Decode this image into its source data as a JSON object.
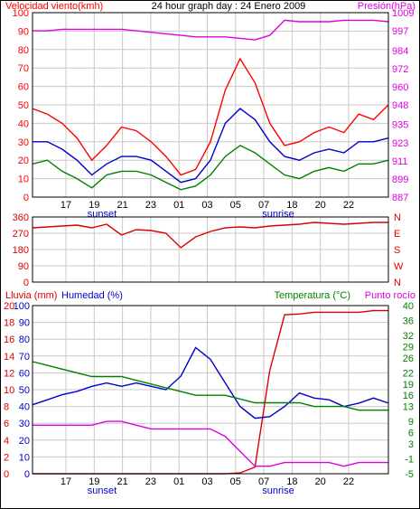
{
  "header": {
    "left_title": "Velocidad viento(kmh)",
    "center_title": "24 hour graph day : 24 Enero 2009",
    "right_title": "Presión(hPa)"
  },
  "colors": {
    "wind_gust": "#ff0000",
    "wind_avg": "#0000cc",
    "wind_low": "#008000",
    "pressure": "#e000e0",
    "direction": "#dd0000",
    "rain": "#dd0000",
    "humidity": "#0000cc",
    "temperature": "#008000",
    "dewpoint": "#e000e0",
    "grid": "#c8c8c8",
    "frame": "#000000"
  },
  "x_axis": {
    "tick_labels": [
      "17",
      "19",
      "21",
      "23",
      "01",
      "03",
      "05",
      "07",
      "18",
      "20",
      "22"
    ],
    "markers": [
      "sunset",
      "sunrise"
    ]
  },
  "panel_labels": {
    "rain": "Lluvia (mm)",
    "humidity": "Humedad (%)",
    "temperature": "Temperatura (°C)",
    "dewpoint": "Punto rocío"
  },
  "chart_data": [
    {
      "type": "line",
      "title": "Velocidad viento(kmh) / Presión(hPa)",
      "left_axis": {
        "label": "Velocidad viento(kmh)",
        "ticks": [
          0,
          10,
          20,
          30,
          40,
          50,
          60,
          70,
          80,
          90,
          100
        ],
        "ylim": [
          0,
          100
        ]
      },
      "right_axis": {
        "label": "Presión(hPa)",
        "ticks": [
          887,
          899,
          911,
          923,
          935,
          948,
          960,
          972,
          984,
          997,
          1009
        ],
        "ylim": [
          887,
          1009
        ]
      },
      "x": [
        0,
        1,
        2,
        3,
        4,
        5,
        6,
        7,
        8,
        9,
        10,
        11,
        12,
        13,
        14,
        15,
        16,
        17,
        18,
        19,
        20,
        21,
        22,
        23,
        24
      ],
      "series": [
        {
          "name": "Velocidad viento(kmh)",
          "axis": "left",
          "color": "#ff0000",
          "values": [
            48,
            45,
            40,
            32,
            20,
            28,
            38,
            36,
            30,
            22,
            12,
            15,
            30,
            58,
            75,
            62,
            40,
            28,
            30,
            35,
            38,
            35,
            45,
            42,
            50
          ]
        },
        {
          "name": "",
          "axis": "left",
          "color": "#0000cc",
          "values": [
            30,
            30,
            26,
            20,
            12,
            18,
            22,
            22,
            20,
            14,
            8,
            10,
            20,
            40,
            48,
            42,
            30,
            22,
            20,
            24,
            26,
            24,
            30,
            30,
            32
          ]
        },
        {
          "name": "",
          "axis": "left",
          "color": "#008000",
          "values": [
            18,
            20,
            14,
            10,
            5,
            12,
            14,
            14,
            12,
            8,
            4,
            6,
            12,
            22,
            28,
            24,
            18,
            12,
            10,
            14,
            16,
            14,
            18,
            18,
            20
          ]
        },
        {
          "name": "Presión(hPa)",
          "axis": "right",
          "color": "#e000e0",
          "values": [
            997,
            997,
            998,
            998,
            998,
            998,
            998,
            997,
            996,
            995,
            994,
            993,
            993,
            993,
            992,
            991,
            994,
            1004,
            1003,
            1003,
            1003,
            1004,
            1004,
            1004,
            1003
          ]
        }
      ]
    },
    {
      "type": "line",
      "title": "Direction",
      "left_axis": {
        "ticks": [
          0,
          90,
          180,
          270,
          360
        ],
        "ylim": [
          0,
          360
        ]
      },
      "right_axis": {
        "ticks": [
          "N",
          "W",
          "S",
          "E",
          "N"
        ]
      },
      "x": [
        0,
        1,
        2,
        3,
        4,
        5,
        6,
        7,
        8,
        9,
        10,
        11,
        12,
        13,
        14,
        15,
        16,
        17,
        18,
        19,
        20,
        21,
        22,
        23,
        24
      ],
      "series": [
        {
          "name": "",
          "color": "#dd0000",
          "values": [
            300,
            305,
            310,
            315,
            300,
            320,
            260,
            290,
            285,
            270,
            190,
            250,
            280,
            300,
            305,
            300,
            310,
            315,
            320,
            330,
            325,
            320,
            325,
            330,
            330
          ]
        }
      ]
    },
    {
      "type": "line",
      "title": "Lluvia / Humedad / Temperatura / Punto rocío",
      "left_axis_outer": {
        "label": "Lluvia (mm)",
        "ticks": [
          0,
          2,
          4,
          6,
          8,
          10,
          12,
          14,
          16,
          18,
          20
        ],
        "ylim": [
          0,
          20
        ]
      },
      "left_axis_inner": {
        "label": "Humedad (%)",
        "ticks": [
          0,
          10,
          20,
          30,
          40,
          50,
          60,
          70,
          80,
          90,
          100
        ],
        "ylim": [
          0,
          100
        ]
      },
      "right_axis": {
        "label": "Temperatura (°C)",
        "ticks": [
          -5,
          -1,
          3,
          6,
          9,
          13,
          16,
          19,
          22,
          26,
          29,
          32,
          36,
          40
        ],
        "ylim": [
          -5,
          40
        ]
      },
      "x": [
        0,
        1,
        2,
        3,
        4,
        5,
        6,
        7,
        8,
        9,
        10,
        11,
        12,
        13,
        14,
        15,
        16,
        17,
        18,
        19,
        20,
        21,
        22,
        23,
        24
      ],
      "series": [
        {
          "name": "Lluvia (mm)",
          "axis": "left_outer",
          "color": "#dd0000",
          "values": [
            0,
            0,
            0,
            0,
            0,
            0,
            0,
            0,
            0,
            0,
            0,
            0,
            0,
            0,
            0.1,
            0.8,
            12.3,
            18.9,
            19.0,
            19.2,
            19.2,
            19.2,
            19.2,
            19.4,
            19.4
          ]
        },
        {
          "name": "Humedad (%)",
          "axis": "left_inner",
          "color": "#0000cc",
          "values": [
            41,
            44,
            47,
            49,
            52,
            54,
            52,
            54,
            52,
            50,
            58,
            75,
            68,
            54,
            40,
            33,
            34,
            40,
            48,
            45,
            44,
            40,
            42,
            45,
            42
          ]
        },
        {
          "name": "Temperatura (°C)",
          "axis": "right",
          "color": "#008000",
          "values": [
            25,
            24,
            23,
            22,
            21,
            21,
            21,
            20,
            19,
            18,
            17,
            16,
            16,
            16,
            15,
            14,
            14,
            14,
            14,
            13,
            13,
            13,
            12,
            12,
            12
          ]
        },
        {
          "name": "Punto rocío",
          "axis": "right",
          "color": "#e000e0",
          "values": [
            8,
            8,
            8,
            8,
            8,
            9,
            9,
            8,
            7,
            7,
            7,
            7,
            7,
            5,
            1,
            -3,
            -3,
            -2,
            -2,
            -2,
            -2,
            -3,
            -2,
            -2,
            -2
          ]
        }
      ]
    }
  ]
}
